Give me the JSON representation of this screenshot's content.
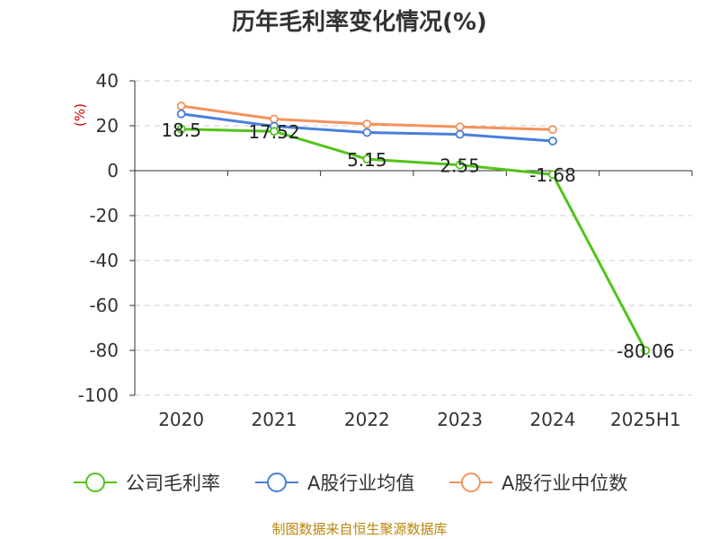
{
  "title": "历年毛利率变化情况(%)",
  "source": "制图数据来自恒生聚源数据库",
  "chart_data": {
    "type": "line",
    "title": "历年毛利率变化情况(%)",
    "ylabel": "(%)",
    "xlabel": "",
    "categories": [
      "2020",
      "2021",
      "2022",
      "2023",
      "2024",
      "2025H1"
    ],
    "ylim": [
      -100,
      40
    ],
    "yticks": [
      40,
      20,
      0,
      -20,
      -40,
      -60,
      -80,
      -100
    ],
    "grid": true,
    "legend_position": "bottom",
    "series": [
      {
        "name": "公司毛利率",
        "color": "#52c41a",
        "values": [
          18.5,
          17.52,
          5.15,
          2.55,
          -1.68,
          -80.06
        ],
        "labels": [
          "18.5",
          "17.52",
          "5.15",
          "2.55",
          "-1.68",
          "-80.06"
        ]
      },
      {
        "name": "A股行业均值",
        "color": "#4a7fdc",
        "values": [
          25.3,
          19.8,
          17.0,
          16.2,
          13.2,
          null
        ]
      },
      {
        "name": "A股行业中位数",
        "color": "#f4925c",
        "values": [
          28.8,
          23.0,
          20.8,
          19.5,
          18.3,
          null
        ]
      }
    ]
  }
}
